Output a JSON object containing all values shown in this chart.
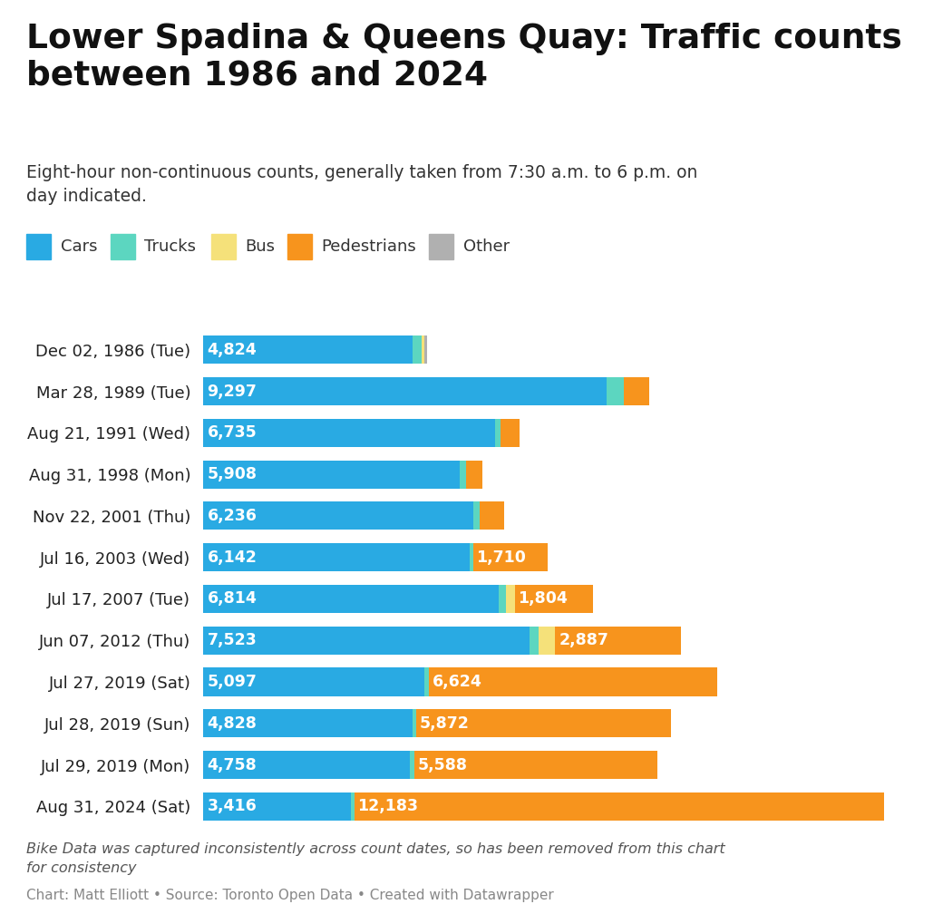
{
  "title": "Lower Spadina & Queens Quay: Traffic counts\nbetween 1986 and 2024",
  "subtitle": "Eight-hour non-continuous counts, generally taken from 7:30 a.m. to 6 p.m. on\nday indicated.",
  "footnote": "Bike Data was captured inconsistently across count dates, so has been removed from this chart\nfor consistency",
  "source": "Chart: Matt Elliott • Source: Toronto Open Data • Created with Datawrapper",
  "categories": [
    "Dec 02, 1986 (Tue)",
    "Mar 28, 1989 (Tue)",
    "Aug 21, 1991 (Wed)",
    "Aug 31, 1998 (Mon)",
    "Nov 22, 2001 (Thu)",
    "Jul 16, 2003 (Wed)",
    "Jul 17, 2007 (Tue)",
    "Jun 07, 2012 (Thu)",
    "Jul 27, 2019 (Sat)",
    "Jul 28, 2019 (Sun)",
    "Jul 29, 2019 (Mon)",
    "Aug 31, 2024 (Sat)"
  ],
  "cars": [
    4824,
    9297,
    6735,
    5908,
    6236,
    6142,
    6814,
    7523,
    5097,
    4828,
    4758,
    3416
  ],
  "trucks": [
    210,
    390,
    120,
    160,
    130,
    75,
    155,
    210,
    110,
    80,
    110,
    70
  ],
  "bus": [
    60,
    0,
    0,
    0,
    0,
    0,
    210,
    380,
    0,
    0,
    0,
    0
  ],
  "pedestrians": [
    0,
    580,
    430,
    370,
    560,
    1710,
    1804,
    2887,
    6624,
    5872,
    5588,
    12183
  ],
  "other": [
    60,
    0,
    0,
    0,
    0,
    0,
    0,
    0,
    0,
    0,
    0,
    0
  ],
  "cars_labels": [
    "4,824",
    "9,297",
    "6,735",
    "5,908",
    "6,236",
    "6,142",
    "6,814",
    "7,523",
    "5,097",
    "4,828",
    "4,758",
    "3,416"
  ],
  "ped_labels": [
    "",
    "",
    "",
    "",
    "",
    "1,710",
    "1,804",
    "2,887",
    "6,624",
    "5,872",
    "5,588",
    "12,183"
  ],
  "colors": {
    "cars": "#29aae3",
    "trucks": "#5cd6c0",
    "bus": "#f5e17a",
    "pedestrians": "#f7941d",
    "other": "#b0b0b0"
  },
  "background": "#ffffff"
}
